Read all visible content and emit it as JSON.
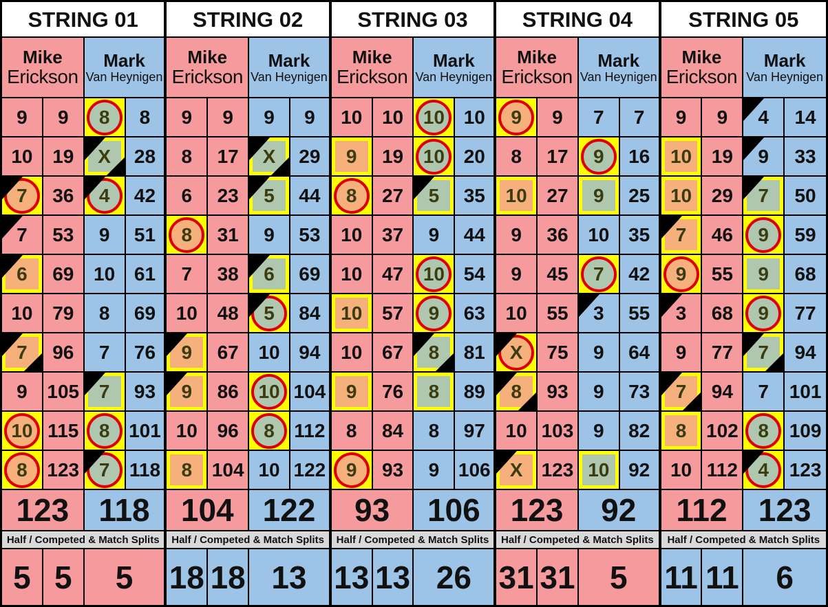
{
  "colors": {
    "player1_bg": "#F69B9D",
    "player2_bg": "#9DC3E6",
    "highlight_bg": "#FFFF00",
    "marker_orange": "#F6B07C",
    "marker_green": "#AFC7AF",
    "ring_red": "#DE0000",
    "splits_bar_bg": "#D9D9D9",
    "marked_text": "#3C3C11",
    "grid_line": "#000000",
    "header_bg": "#FFFFFF"
  },
  "sheet": {
    "splits_label": "Half / Competed & Match Splits",
    "strings": [
      {
        "label": "STRING 01",
        "splits": {
          "color": "p1",
          "values": [
            "5",
            "5",
            "5"
          ]
        },
        "players": [
          {
            "first": "Mike",
            "last": "Erickson",
            "color": "p1",
            "total": "123",
            "rows": [
              {
                "score": "9",
                "total": "9"
              },
              {
                "score": "10",
                "total": "19"
              },
              {
                "score": "7",
                "total": "36",
                "deco": "circle-orange",
                "tri": "tl"
              },
              {
                "score": "7",
                "total": "53",
                "tri": "tl"
              },
              {
                "score": "6",
                "total": "69",
                "deco": "square-orange",
                "tri": "tl"
              },
              {
                "score": "10",
                "total": "79"
              },
              {
                "score": "7",
                "total": "96",
                "deco": "square-orange",
                "tri": "tl-br"
              },
              {
                "score": "9",
                "total": "105"
              },
              {
                "score": "10",
                "total": "115",
                "deco": "circle-orange"
              },
              {
                "score": "8",
                "total": "123",
                "deco": "circle-orange"
              }
            ]
          },
          {
            "first": "Mark",
            "last": "Van Heynigen",
            "color": "p2",
            "total": "118",
            "rows": [
              {
                "score": "8",
                "total": "8",
                "deco": "circle-green"
              },
              {
                "score": "X",
                "total": "28",
                "deco": "square-green",
                "tri": "tl-br"
              },
              {
                "score": "4",
                "total": "42",
                "deco": "circle-green",
                "tri": "tl"
              },
              {
                "score": "9",
                "total": "51"
              },
              {
                "score": "10",
                "total": "61"
              },
              {
                "score": "8",
                "total": "69"
              },
              {
                "score": "7",
                "total": "76"
              },
              {
                "score": "7",
                "total": "93",
                "deco": "square-green",
                "tri": "tl"
              },
              {
                "score": "8",
                "total": "101",
                "deco": "circle-green"
              },
              {
                "score": "7",
                "total": "118",
                "deco": "circle-green",
                "tri": "tl"
              }
            ]
          }
        ]
      },
      {
        "label": "STRING 02",
        "splits": {
          "color": "p2",
          "values": [
            "18",
            "18",
            "13"
          ]
        },
        "players": [
          {
            "first": "Mike",
            "last": "Erickson",
            "color": "p1",
            "total": "104",
            "rows": [
              {
                "score": "9",
                "total": "9"
              },
              {
                "score": "8",
                "total": "17"
              },
              {
                "score": "6",
                "total": "23"
              },
              {
                "score": "8",
                "total": "31",
                "deco": "circle-orange"
              },
              {
                "score": "7",
                "total": "38"
              },
              {
                "score": "10",
                "total": "48"
              },
              {
                "score": "9",
                "total": "67",
                "deco": "square-orange",
                "tri": "tl"
              },
              {
                "score": "9",
                "total": "86",
                "deco": "square-orange",
                "tri": "tl"
              },
              {
                "score": "10",
                "total": "96"
              },
              {
                "score": "8",
                "total": "104",
                "deco": "square-orange"
              }
            ]
          },
          {
            "first": "Mark",
            "last": "Van Heynigen",
            "color": "p2",
            "total": "122",
            "rows": [
              {
                "score": "9",
                "total": "9"
              },
              {
                "score": "X",
                "total": "29",
                "deco": "square-green",
                "tri": "tl-br"
              },
              {
                "score": "5",
                "total": "44",
                "deco": "square-green",
                "tri": "tl"
              },
              {
                "score": "9",
                "total": "53"
              },
              {
                "score": "6",
                "total": "69",
                "deco": "square-green",
                "tri": "tl"
              },
              {
                "score": "5",
                "total": "84",
                "deco": "circle-green",
                "tri": "tl"
              },
              {
                "score": "10",
                "total": "94"
              },
              {
                "score": "10",
                "total": "104",
                "deco": "circle-green"
              },
              {
                "score": "8",
                "total": "112",
                "deco": "circle-green"
              },
              {
                "score": "10",
                "total": "122"
              }
            ]
          }
        ]
      },
      {
        "label": "STRING 03",
        "splits": {
          "color": "p2",
          "values": [
            "13",
            "13",
            "26"
          ]
        },
        "players": [
          {
            "first": "Mike",
            "last": "Erickson",
            "color": "p1",
            "total": "93",
            "rows": [
              {
                "score": "10",
                "total": "10"
              },
              {
                "score": "9",
                "total": "19",
                "deco": "square-orange"
              },
              {
                "score": "8",
                "total": "27",
                "deco": "circle-orange"
              },
              {
                "score": "10",
                "total": "37"
              },
              {
                "score": "10",
                "total": "47"
              },
              {
                "score": "10",
                "total": "57",
                "deco": "square-orange"
              },
              {
                "score": "10",
                "total": "67"
              },
              {
                "score": "9",
                "total": "76",
                "deco": "square-orange"
              },
              {
                "score": "8",
                "total": "84"
              },
              {
                "score": "9",
                "total": "93",
                "deco": "circle-orange"
              }
            ]
          },
          {
            "first": "Mark",
            "last": "Van Heynigen",
            "color": "p2",
            "total": "106",
            "rows": [
              {
                "score": "10",
                "total": "10",
                "deco": "circle-green"
              },
              {
                "score": "10",
                "total": "20",
                "deco": "circle-green"
              },
              {
                "score": "5",
                "total": "35",
                "deco": "square-green",
                "tri": "tl"
              },
              {
                "score": "9",
                "total": "44"
              },
              {
                "score": "10",
                "total": "54",
                "deco": "circle-green"
              },
              {
                "score": "9",
                "total": "63",
                "deco": "circle-green"
              },
              {
                "score": "8",
                "total": "81",
                "deco": "square-green",
                "tri": "tl-br"
              },
              {
                "score": "8",
                "total": "89",
                "deco": "square-green"
              },
              {
                "score": "8",
                "total": "97"
              },
              {
                "score": "9",
                "total": "106"
              }
            ]
          }
        ]
      },
      {
        "label": "STRING 04",
        "splits": {
          "color": "p1",
          "values": [
            "31",
            "31",
            "5"
          ]
        },
        "players": [
          {
            "first": "Mike",
            "last": "Erickson",
            "color": "p1",
            "total": "123",
            "rows": [
              {
                "score": "9",
                "total": "9",
                "deco": "circle-orange"
              },
              {
                "score": "8",
                "total": "17"
              },
              {
                "score": "10",
                "total": "27",
                "deco": "square-orange"
              },
              {
                "score": "9",
                "total": "36"
              },
              {
                "score": "9",
                "total": "45"
              },
              {
                "score": "10",
                "total": "55"
              },
              {
                "score": "X",
                "total": "75",
                "deco": "circle-orange",
                "tri": "tl"
              },
              {
                "score": "8",
                "total": "93",
                "deco": "square-orange",
                "tri": "tl-br"
              },
              {
                "score": "10",
                "total": "103"
              },
              {
                "score": "X",
                "total": "123",
                "deco": "square-orange",
                "tri": "tl"
              }
            ]
          },
          {
            "first": "Mark",
            "last": "Van Heynigen",
            "color": "p2",
            "total": "92",
            "rows": [
              {
                "score": "7",
                "total": "7"
              },
              {
                "score": "9",
                "total": "16",
                "deco": "circle-green"
              },
              {
                "score": "9",
                "total": "25",
                "deco": "square-green"
              },
              {
                "score": "10",
                "total": "35"
              },
              {
                "score": "7",
                "total": "42",
                "deco": "circle-green"
              },
              {
                "score": "3",
                "total": "55",
                "tri": "tl"
              },
              {
                "score": "9",
                "total": "64"
              },
              {
                "score": "9",
                "total": "73"
              },
              {
                "score": "9",
                "total": "82"
              },
              {
                "score": "10",
                "total": "92",
                "deco": "square-green"
              }
            ]
          }
        ]
      },
      {
        "label": "STRING 05",
        "splits": {
          "color": "p2",
          "values": [
            "11",
            "11",
            "6"
          ]
        },
        "players": [
          {
            "first": "Mike",
            "last": "Erickson",
            "color": "p1",
            "total": "112",
            "rows": [
              {
                "score": "9",
                "total": "9"
              },
              {
                "score": "10",
                "total": "19",
                "deco": "square-orange"
              },
              {
                "score": "10",
                "total": "29",
                "deco": "square-orange"
              },
              {
                "score": "7",
                "total": "46",
                "deco": "square-orange",
                "tri": "tl"
              },
              {
                "score": "9",
                "total": "55",
                "deco": "circle-orange"
              },
              {
                "score": "3",
                "total": "68",
                "tri": "tl"
              },
              {
                "score": "9",
                "total": "77"
              },
              {
                "score": "7",
                "total": "94",
                "deco": "square-orange",
                "tri": "tl-br"
              },
              {
                "score": "8",
                "total": "102",
                "deco": "square-orange"
              },
              {
                "score": "10",
                "total": "112"
              }
            ]
          },
          {
            "first": "Mark",
            "last": "Van Heynigen",
            "color": "p2",
            "total": "123",
            "rows": [
              {
                "score": "4",
                "total": "14",
                "tri": "tl"
              },
              {
                "score": "9",
                "total": "33",
                "tri": "tl"
              },
              {
                "score": "7",
                "total": "50",
                "deco": "square-green",
                "tri": "tl"
              },
              {
                "score": "9",
                "total": "59",
                "deco": "circle-green"
              },
              {
                "score": "9",
                "total": "68",
                "deco": "square-green"
              },
              {
                "score": "9",
                "total": "77",
                "deco": "circle-green"
              },
              {
                "score": "7",
                "total": "94",
                "deco": "square-green",
                "tri": "tl-br"
              },
              {
                "score": "7",
                "total": "101"
              },
              {
                "score": "8",
                "total": "109",
                "deco": "circle-green"
              },
              {
                "score": "4",
                "total": "123",
                "deco": "circle-green",
                "tri": "tl"
              }
            ]
          }
        ]
      }
    ]
  }
}
